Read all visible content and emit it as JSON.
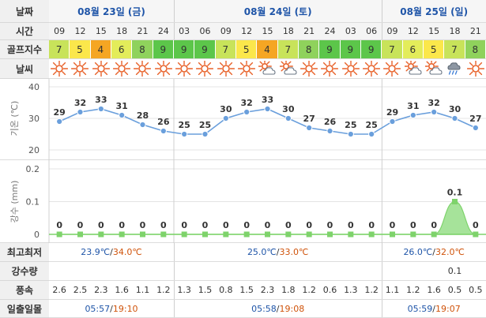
{
  "row_labels": {
    "date": "날짜",
    "hour": "시간",
    "golf": "골프지수",
    "weather": "날씨",
    "minmax": "최고최저",
    "rain": "강수량",
    "wind": "풍속",
    "sun": "일출일몰"
  },
  "dates": [
    "08월 23일 (금)",
    "08월 24일 (토)",
    "08월 25일 (일)"
  ],
  "hours": [
    "09",
    "12",
    "15",
    "18",
    "21",
    "24",
    "03",
    "06",
    "09",
    "12",
    "15",
    "18",
    "21",
    "24",
    "03",
    "06",
    "09",
    "12",
    "15",
    "18",
    "21"
  ],
  "golf_index": [
    "7",
    "5",
    "4",
    "6",
    "8",
    "9",
    "9",
    "9",
    "7",
    "5",
    "4",
    "7",
    "8",
    "9",
    "9",
    "9",
    "7",
    "6",
    "5",
    "7",
    "8"
  ],
  "golf_colors": {
    "4": "#f5a623",
    "5": "#fbe74b",
    "6": "#e3ec5a",
    "7": "#c8e35a",
    "8": "#8fd25c",
    "9": "#5cc64a"
  },
  "weather_icons": [
    "sun-icon",
    "sun-icon",
    "sun-icon",
    "sun-icon",
    "sun-icon",
    "sun-icon",
    "sun-icon",
    "sun-icon",
    "sun-icon",
    "sun-icon",
    "sun-cloud-icon",
    "sun-cloud-icon",
    "sun-icon",
    "sun-icon",
    "sun-icon",
    "sun-icon",
    "sun-icon",
    "sun-cloud-icon",
    "sun-cloud-icon",
    "rain-cloud-icon",
    "sun-icon"
  ],
  "temp_axis_label": "기온 (℃)",
  "rain_axis_label": "강수 (mm)",
  "chart_data": [
    {
      "type": "line",
      "x": [
        "09",
        "12",
        "15",
        "18",
        "21",
        "24",
        "03",
        "06",
        "09",
        "12",
        "15",
        "18",
        "21",
        "24",
        "03",
        "06",
        "09",
        "12",
        "15",
        "18",
        "21"
      ],
      "series": [
        {
          "values": [
            29,
            32,
            33,
            31,
            28,
            26,
            25,
            25,
            30,
            32,
            33,
            30,
            27,
            26,
            25,
            25,
            29,
            31,
            32,
            30,
            27
          ]
        }
      ],
      "ylabel": "기온 (℃)",
      "ylim": [
        20,
        40
      ],
      "yticks": [
        "40",
        "30",
        "20"
      ],
      "data_labels": [
        "29",
        "32",
        "33",
        "31",
        "28",
        "26",
        "25",
        "25",
        "30",
        "32",
        "33",
        "30",
        "27",
        "26",
        "25",
        "25",
        "29",
        "31",
        "32",
        "30",
        "27"
      ],
      "grid": true,
      "color": "#6a9fdc"
    },
    {
      "type": "area",
      "x": [
        "09",
        "12",
        "15",
        "18",
        "21",
        "24",
        "03",
        "06",
        "09",
        "12",
        "15",
        "18",
        "21",
        "24",
        "03",
        "06",
        "09",
        "12",
        "15",
        "18",
        "21"
      ],
      "series": [
        {
          "values": [
            0,
            0,
            0,
            0,
            0,
            0,
            0,
            0,
            0,
            0,
            0,
            0,
            0,
            0,
            0,
            0,
            0,
            0,
            0,
            0.1,
            0
          ]
        }
      ],
      "ylabel": "강수 (mm)",
      "ylim": [
        0,
        0.2
      ],
      "yticks": [
        "0.2",
        "0.1",
        "0"
      ],
      "data_labels": [
        "0",
        "0",
        "0",
        "0",
        "0",
        "0",
        "0",
        "0",
        "0",
        "0",
        "0",
        "0",
        "0",
        "0",
        "0",
        "0",
        "0",
        "0",
        "0",
        "0.1",
        "0"
      ],
      "grid": true,
      "color": "#7ed36b"
    }
  ],
  "minmax": [
    {
      "min": "23.9℃",
      "sep": "/",
      "max": "34.0℃"
    },
    {
      "min": "25.0℃",
      "sep": "/",
      "max": "33.0℃"
    },
    {
      "min": "26.0℃",
      "sep": "/",
      "max": "32.0℃"
    }
  ],
  "rain_amount": [
    "",
    "",
    "",
    "",
    "",
    "",
    "",
    "",
    "",
    "",
    "",
    "",
    "",
    "",
    "",
    "",
    "",
    "",
    "",
    "0.1",
    ""
  ],
  "wind": [
    "2.6",
    "2.5",
    "2.3",
    "1.6",
    "1.1",
    "1.2",
    "1.3",
    "1.5",
    "0.8",
    "1.5",
    "2.3",
    "1.8",
    "1.2",
    "0.6",
    "1.3",
    "1.2",
    "1.1",
    "1.2",
    "1.6",
    "0.5",
    "0.5"
  ],
  "sun": [
    {
      "rise": "05:57",
      "sep": "/",
      "set": "19:10"
    },
    {
      "rise": "05:58",
      "sep": "/",
      "set": "19:08"
    },
    {
      "rise": "05:59",
      "sep": "/",
      "set": "19:07"
    }
  ]
}
